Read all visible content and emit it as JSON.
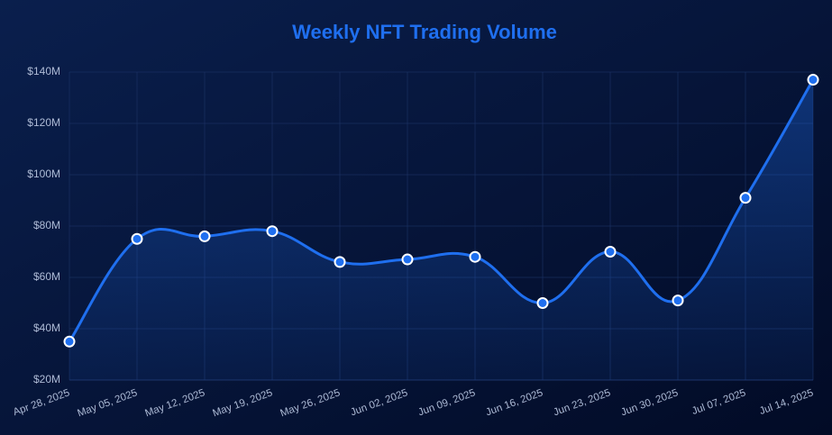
{
  "chart_data": {
    "type": "line",
    "title": "Weekly NFT Trading Volume",
    "categories": [
      "Apr 28, 2025",
      "May 05, 2025",
      "May 12, 2025",
      "May 19, 2025",
      "May 26, 2025",
      "Jun 02, 2025",
      "Jun 09, 2025",
      "Jun 16, 2025",
      "Jun 23, 2025",
      "Jun 30, 2025",
      "Jul 07, 2025",
      "Jul 14, 2025"
    ],
    "values": [
      35,
      75,
      76,
      78,
      66,
      67,
      68,
      50,
      70,
      51,
      91,
      137
    ],
    "color": "#1f6fef",
    "ylim": [
      20,
      140
    ],
    "yticks": [
      {
        "value": 20,
        "label": "$20M"
      },
      {
        "value": 40,
        "label": "$40M"
      },
      {
        "value": 60,
        "label": "$60M"
      },
      {
        "value": 80,
        "label": "$80M"
      },
      {
        "value": 100,
        "label": "$100M"
      },
      {
        "value": 120,
        "label": "$120M"
      },
      {
        "value": 140,
        "label": "$140M"
      }
    ],
    "grid": true
  }
}
